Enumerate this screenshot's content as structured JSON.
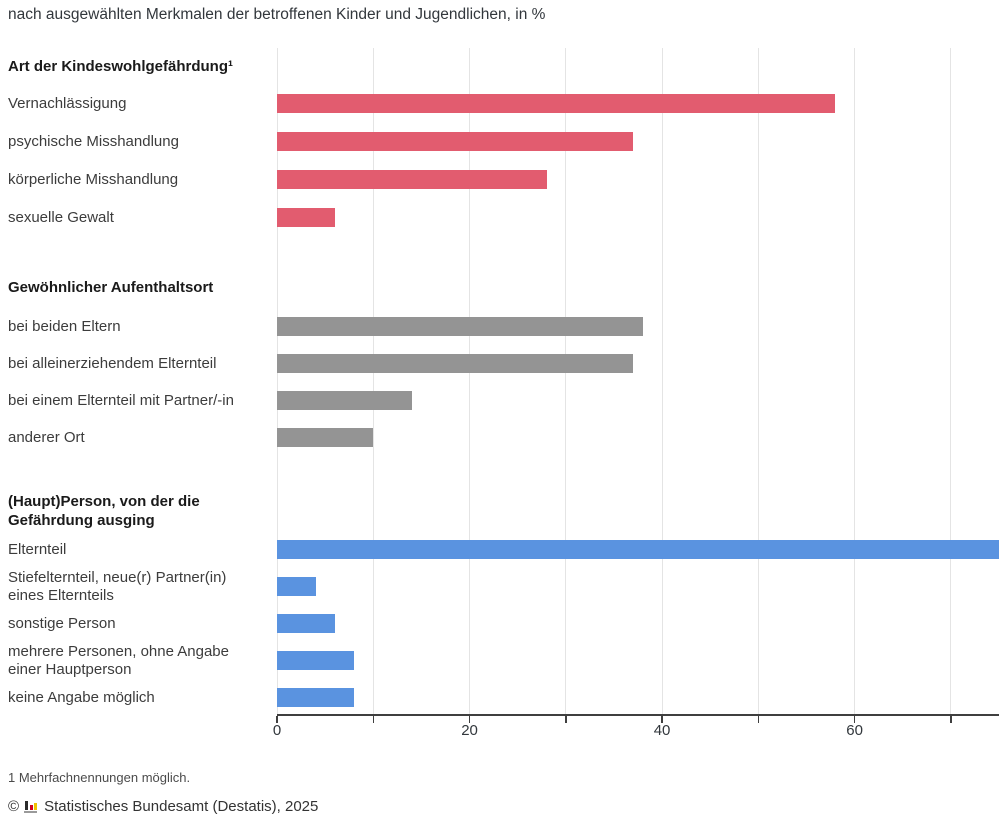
{
  "chart_data": {
    "type": "bar",
    "orientation": "horizontal",
    "unit": "%",
    "subtitle": "nach ausgewählten Merkmalen der betroffenen Kinder und Jugendlichen, in %",
    "xlim": [
      0,
      75
    ],
    "x_ticks": [
      0,
      10,
      20,
      30,
      40,
      50,
      60,
      70
    ],
    "x_tick_labels": [
      0,
      20,
      40,
      60
    ],
    "grid": true,
    "legend": "none",
    "colors": {
      "group1": "#e25c6f",
      "group2": "#949494",
      "group3": "#5a93e0",
      "gridline": "#e4e4e4",
      "axis": "#3f3f3f"
    },
    "groups": [
      {
        "title": "Art der Kindeswohlgefährdung¹",
        "color": "#e25c6f",
        "bars": [
          {
            "label": "Vernachlässigung",
            "value": 58
          },
          {
            "label": "psychische Misshandlung",
            "value": 37
          },
          {
            "label": "körperliche Misshandlung",
            "value": 28
          },
          {
            "label": "sexuelle Gewalt",
            "value": 6
          }
        ]
      },
      {
        "title": "Gewöhnlicher Aufenthaltsort",
        "color": "#949494",
        "bars": [
          {
            "label": "bei beiden Eltern",
            "value": 38
          },
          {
            "label": "bei alleinerziehendem Elternteil",
            "value": 37
          },
          {
            "label": "bei einem Elternteil mit Partner/-in",
            "value": 14
          },
          {
            "label": "anderer Ort",
            "value": 10
          }
        ]
      },
      {
        "title": "(Haupt)Person, von der die Gefährdung ausging",
        "title_lines": [
          "(Haupt)Person, von der die",
          "Gefährdung ausging"
        ],
        "color": "#5a93e0",
        "bars": [
          {
            "label": "Elternteil",
            "value": 75,
            "clipped_at_right_edge": true
          },
          {
            "label": "Stiefelternteil, neue(r) Partner(in) eines Elternteils",
            "label_lines": [
              "Stiefelternteil, neue(r) Partner(in)",
              "eines Elternteils"
            ],
            "value": 4
          },
          {
            "label": "sonstige Person",
            "value": 6
          },
          {
            "label": "mehrere Personen, ohne Angabe einer Hauptperson",
            "label_lines": [
              "mehrere Personen, ohne Angabe",
              "einer Hauptperson"
            ],
            "value": 8
          },
          {
            "label": "keine Angabe möglich",
            "value": 8
          }
        ]
      }
    ],
    "footnote": "1 Mehrfachnennungen möglich.",
    "copyright": {
      "prefix": "©",
      "logo_icon": "destatis-bar-chart-icon",
      "text": "Statistisches Bundesamt (Destatis), 2025"
    }
  }
}
